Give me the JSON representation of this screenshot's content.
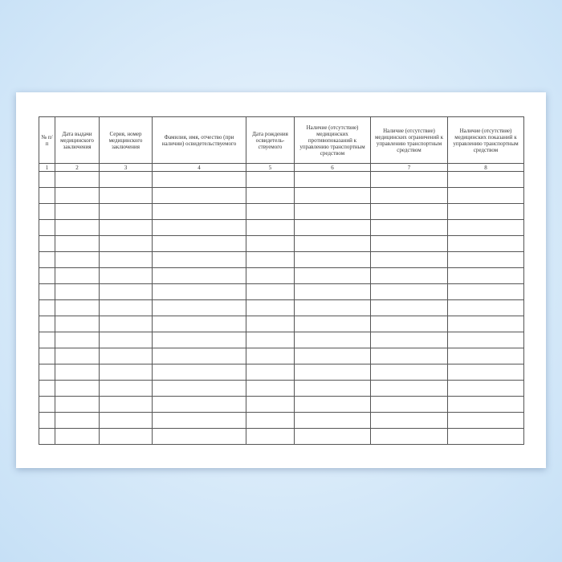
{
  "table": {
    "columns": [
      "№ п/п",
      "Дата выдачи медицинского заключения",
      "Серия, номер медицинского заключения",
      "Фамилия, имя, отчество (при наличии) освидетельствуемого",
      "Дата рождения освидетель-ствуемого",
      "Наличие (отсутствие) медицинских противопоказаний к управлению транспортным средством",
      "Наличие (отсутствие) медицинских ограничений к управлению транспортным средством",
      "Наличие (отсутствие) медицинских показаний к управлению транспортным средством"
    ],
    "numbers": [
      1,
      2,
      3,
      4,
      5,
      6,
      7,
      8
    ]
  }
}
